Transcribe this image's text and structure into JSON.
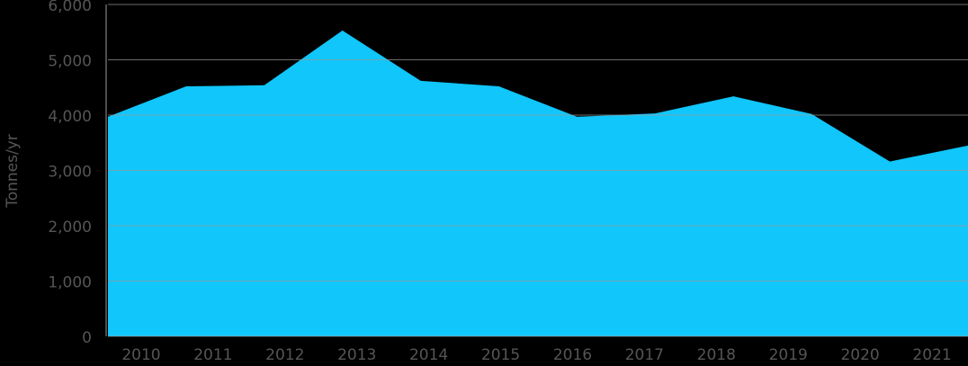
{
  "chart_data": {
    "type": "area",
    "y_label": "Tonnes/yr",
    "categories": [
      "2010",
      "2011",
      "2012",
      "2013",
      "2014",
      "2015",
      "2016",
      "2017",
      "2018",
      "2019",
      "2020",
      "2021"
    ],
    "values": [
      3970,
      4520,
      4540,
      5530,
      4620,
      4520,
      3970,
      4030,
      4340,
      4020,
      3160,
      3450
    ],
    "color": "#10c6fb",
    "ylim": [
      0,
      6000
    ],
    "yticks": [
      {
        "value": 0,
        "label": "0"
      },
      {
        "value": 1000,
        "label": "1,000"
      },
      {
        "value": 2000,
        "label": "2,000"
      },
      {
        "value": 3000,
        "label": "3,000"
      },
      {
        "value": 4000,
        "label": "4,000"
      },
      {
        "value": 5000,
        "label": "5,000"
      },
      {
        "value": 6000,
        "label": "6,000"
      }
    ],
    "grid": true
  }
}
